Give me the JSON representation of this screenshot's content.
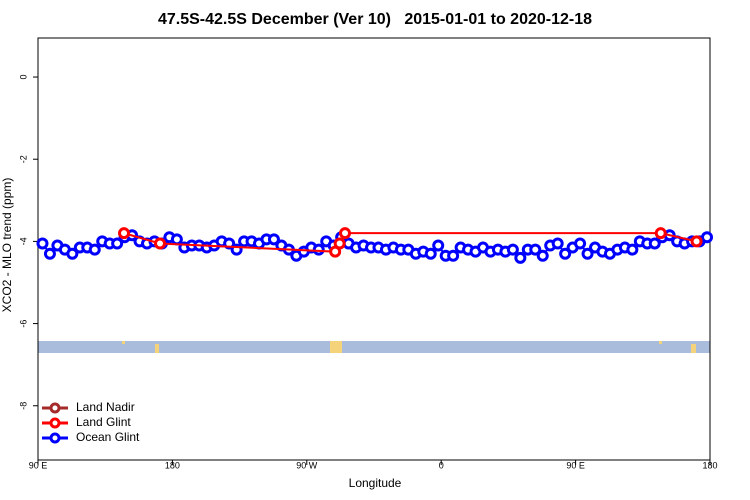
{
  "chart_data": {
    "type": "line",
    "title": "47.5S-42.5S December (Ver 10)   2015-01-01 to 2020-12-18",
    "xlabel": "Longitude",
    "ylabel": "XCO2 - MLO trend (ppm)",
    "xlim": [
      90,
      540
    ],
    "ylim": [
      -9.32,
      0.95
    ],
    "xticks": [
      {
        "value": 90,
        "label": "90 E"
      },
      180,
      {
        "value": 270,
        "label": "90 W"
      },
      {
        "value": 360,
        "label": "0"
      },
      {
        "value": 450,
        "label": "90 E"
      },
      {
        "value": 540,
        "label": "180"
      }
    ],
    "yticks": [
      0,
      -2,
      -4,
      -6,
      -8
    ],
    "legend": "bottom-left",
    "series": [
      {
        "name": "Land Nadir",
        "color": "#a52a2a",
        "x": [],
        "values": []
      },
      {
        "name": "Land Glint",
        "color": "#ff0000",
        "x": [
          147.6,
          171.7,
          289,
          292,
          295.6,
          507,
          531
        ],
        "values": [
          -3.8,
          -4.05,
          -4.25,
          -4.05,
          -3.8,
          -3.8,
          -4.0
        ]
      },
      {
        "name": "Ocean Glint",
        "color": "#0000ff",
        "x": [
          93,
          98,
          103,
          108,
          113,
          118,
          123,
          128,
          133,
          138,
          143,
          148,
          153,
          158,
          163,
          168,
          173,
          178,
          183,
          188,
          193,
          198,
          203,
          208,
          213,
          218,
          223,
          228,
          233,
          238,
          243,
          248,
          253,
          258,
          263,
          268,
          273,
          278,
          283,
          288,
          293,
          298,
          303,
          308,
          313,
          318,
          323,
          328,
          333,
          338,
          343,
          348,
          353,
          358,
          363,
          368,
          373,
          378,
          383,
          388,
          393,
          398,
          403,
          408,
          413,
          418,
          423,
          428,
          433,
          438,
          443,
          448,
          453,
          458,
          463,
          468,
          473,
          478,
          483,
          488,
          493,
          498,
          503,
          508,
          513,
          518,
          523,
          528,
          533,
          538
        ],
        "values": [
          -4.05,
          -4.3,
          -4.1,
          -4.2,
          -4.3,
          -4.15,
          -4.15,
          -4.2,
          -4.0,
          -4.05,
          -4.05,
          -3.9,
          -3.85,
          -4.0,
          -4.05,
          -4.0,
          -4.05,
          -3.9,
          -3.95,
          -4.15,
          -4.1,
          -4.1,
          -4.15,
          -4.1,
          -4.0,
          -4.05,
          -4.2,
          -4.0,
          -4.0,
          -4.05,
          -3.95,
          -3.95,
          -4.1,
          -4.2,
          -4.35,
          -4.25,
          -4.15,
          -4.2,
          -4.0,
          -4.1,
          -3.9,
          -4.05,
          -4.15,
          -4.1,
          -4.15,
          -4.15,
          -4.2,
          -4.15,
          -4.2,
          -4.2,
          -4.3,
          -4.25,
          -4.3,
          -4.1,
          -4.35,
          -4.35,
          -4.15,
          -4.2,
          -4.25,
          -4.15,
          -4.25,
          -4.2,
          -4.25,
          -4.2,
          -4.4,
          -4.2,
          -4.2,
          -4.35,
          -4.1,
          -4.05,
          -4.3,
          -4.15,
          -4.05,
          -4.3,
          -4.15,
          -4.25,
          -4.3,
          -4.2,
          -4.15,
          -4.2,
          -4.0,
          -4.05,
          -4.05,
          -3.9,
          -3.85,
          -4.0,
          -4.05,
          -4.0,
          -4.0,
          -3.9
        ]
      }
    ]
  }
}
